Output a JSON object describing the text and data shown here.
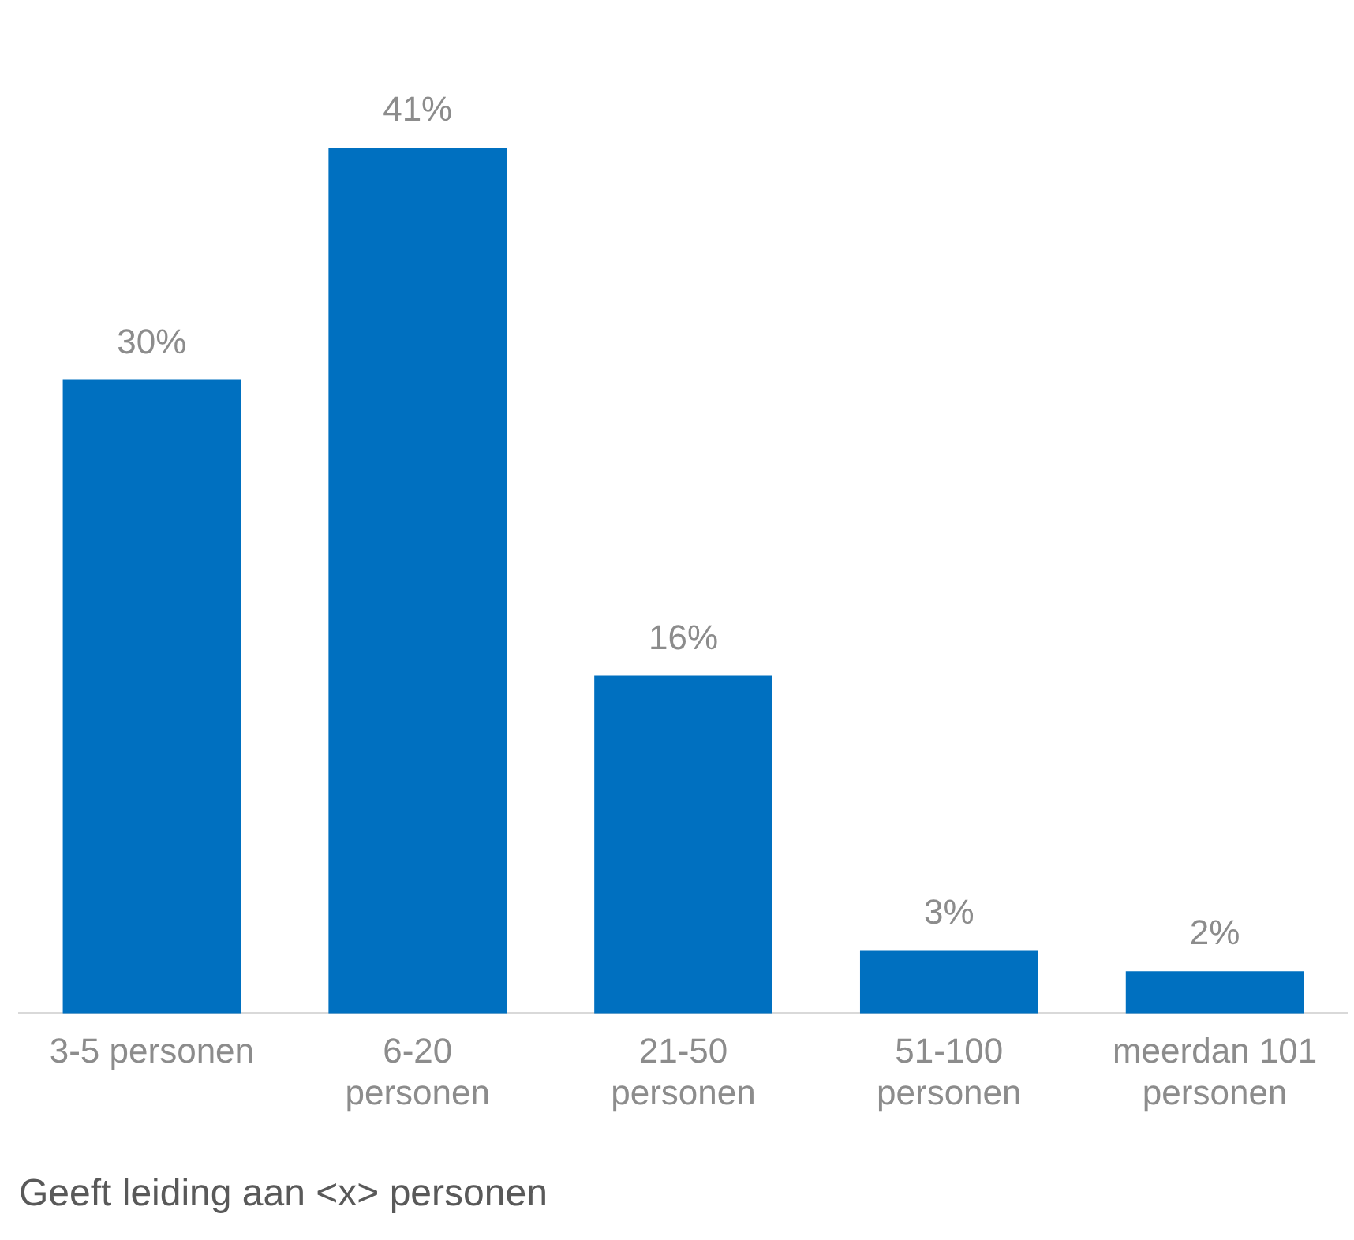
{
  "chart_data": {
    "type": "bar",
    "xlabel": "Geeft leiding aan <x> personen",
    "categories": [
      "3-5 personen",
      "6-20 personen",
      "21-50 personen",
      "51-100 personen",
      "meerdan 101 personen"
    ],
    "values": [
      30,
      41,
      16,
      3,
      2
    ],
    "color": "#0070c0",
    "value_labels": [
      "30%",
      "41%",
      "16%",
      "3%",
      "2%"
    ],
    "grid": false,
    "legend": false
  }
}
